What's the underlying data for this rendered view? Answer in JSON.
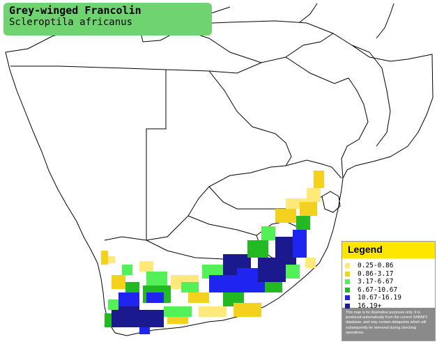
{
  "title": {
    "common_name": "Grey-winged Francolin",
    "scientific_name": "Scleroptila africanus"
  },
  "legend": {
    "heading": "Legend",
    "ranges": [
      {
        "label": "0.25-0.86",
        "color": "#ffe97a"
      },
      {
        "label": "0.86-3.17",
        "color": "#f3d11e"
      },
      {
        "label": "3.17-6.67",
        "color": "#54f05a"
      },
      {
        "label": "6.67-10.67",
        "color": "#22b922"
      },
      {
        "label": "10.67-16.19",
        "color": "#1f24ee"
      },
      {
        "label": "16.19+",
        "color": "#1a1a8e"
      }
    ],
    "disclaimer": "This map is for illustrative purposes only; it is produced automatically from the current SABAP2 database, and may contain datapoints which will subsequently be removed during checking operations."
  },
  "map": {
    "background_color": "#ffffff",
    "border_color": "#000000"
  }
}
